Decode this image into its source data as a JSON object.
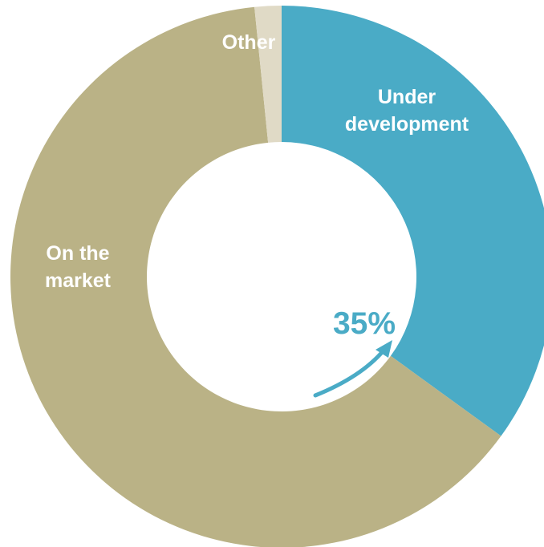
{
  "chart_data": {
    "type": "pie",
    "donut": true,
    "slices": [
      {
        "label": [
          "Under",
          "development"
        ],
        "value": 35,
        "color": "#4aabc6"
      },
      {
        "label": [
          "On the",
          "market"
        ],
        "value": 63.4,
        "color": "#bab286"
      },
      {
        "label": [
          "Other"
        ],
        "value": 1.6,
        "color": "#e0dac6"
      }
    ],
    "callout": {
      "text": "35%",
      "color": "#4aabc6"
    }
  }
}
